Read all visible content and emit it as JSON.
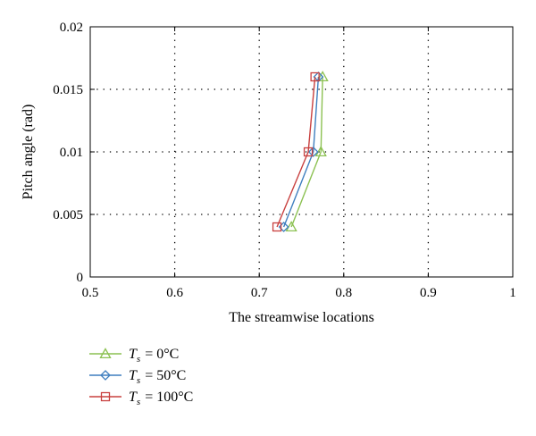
{
  "chart_data": {
    "type": "line",
    "xlabel": "The streamwise locations",
    "ylabel": "Pitch angle (rad)",
    "xlim": [
      0.5,
      1
    ],
    "ylim": [
      0,
      0.02
    ],
    "x_ticks": [
      "0.5",
      "0.6",
      "0.7",
      "0.8",
      "0.9",
      "1"
    ],
    "y_ticks": [
      "0",
      "0.005",
      "0.01",
      "0.015",
      "0.02"
    ],
    "grid": true,
    "legend_position": "bottom-left, below plot",
    "series": [
      {
        "legend_symbol": "T",
        "legend_subscript": "s",
        "legend_value": "= 0°C",
        "color": "#8cc152",
        "marker": "triangle",
        "x": [
          0.775,
          0.773,
          0.738
        ],
        "y": [
          0.016,
          0.01,
          0.004
        ]
      },
      {
        "legend_symbol": "T",
        "legend_subscript": "s",
        "legend_value": "= 50°C",
        "color": "#3f7fbf",
        "marker": "diamond",
        "x": [
          0.77,
          0.764,
          0.729
        ],
        "y": [
          0.016,
          0.01,
          0.004
        ]
      },
      {
        "legend_symbol": "T",
        "legend_subscript": "s",
        "legend_value": "= 100°C",
        "color": "#c8403f",
        "marker": "square",
        "x": [
          0.766,
          0.758,
          0.721
        ],
        "y": [
          0.016,
          0.01,
          0.004
        ]
      }
    ]
  }
}
